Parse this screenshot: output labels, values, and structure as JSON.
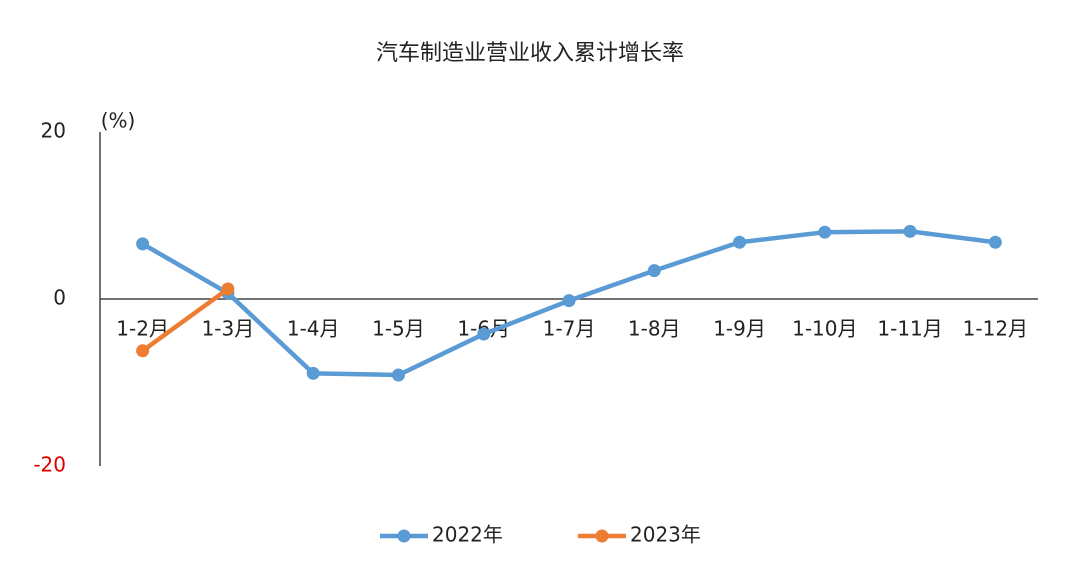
{
  "chart_data": {
    "type": "line",
    "title": "汽车制造业营业收入累计增长率",
    "y_label": "(%)",
    "categories": [
      "1-2月",
      "1-3月",
      "1-4月",
      "1-5月",
      "1-6月",
      "1-7月",
      "1-8月",
      "1-9月",
      "1-10月",
      "1-11月",
      "1-12月"
    ],
    "series": [
      {
        "name": "2022年",
        "color": "#5b9bd5",
        "values": [
          6.6,
          0.7,
          -8.9,
          -9.1,
          -4.2,
          -0.2,
          3.4,
          6.8,
          8.0,
          8.1,
          6.8
        ]
      },
      {
        "name": "2023年",
        "color": "#ed7d31",
        "values": [
          -6.2,
          1.2,
          null,
          null,
          null,
          null,
          null,
          null,
          null,
          null,
          null
        ]
      }
    ],
    "ylim": [
      -20,
      20
    ],
    "yticks": [
      20,
      0,
      -20
    ],
    "ytick_colors": [
      "#222222",
      "#222222",
      "#e00000"
    ],
    "legend": "bottom"
  }
}
